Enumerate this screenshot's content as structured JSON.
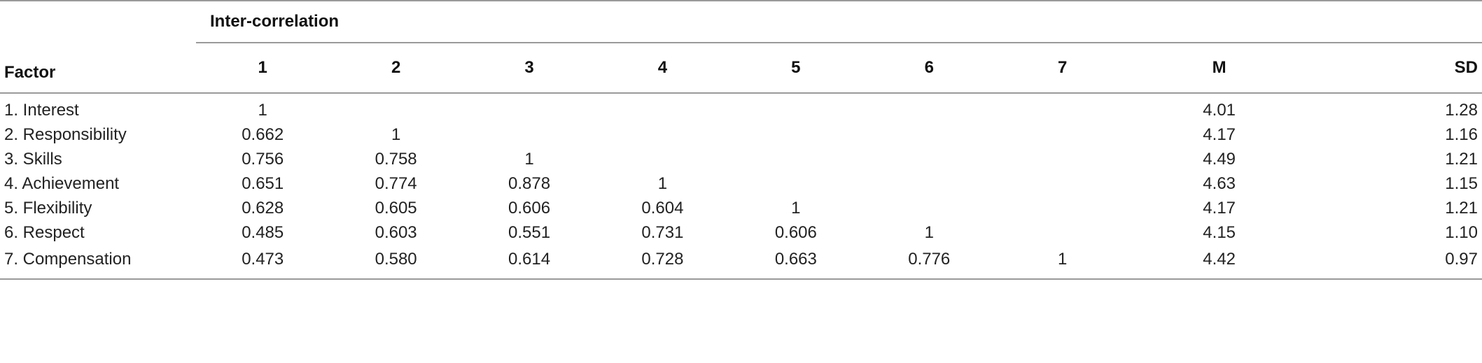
{
  "table": {
    "group_header": "Inter-correlation",
    "columns": [
      "Factor",
      "1",
      "2",
      "3",
      "4",
      "5",
      "6",
      "7",
      "M",
      "SD"
    ],
    "rows": [
      {
        "factor": "1. Interest",
        "r": [
          "1",
          "",
          "",
          "",
          "",
          "",
          ""
        ],
        "m": "4.01",
        "sd": "1.28"
      },
      {
        "factor": "2. Responsibility",
        "r": [
          "0.662",
          "1",
          "",
          "",
          "",
          "",
          ""
        ],
        "m": "4.17",
        "sd": "1.16"
      },
      {
        "factor": "3. Skills",
        "r": [
          "0.756",
          "0.758",
          "1",
          "",
          "",
          "",
          ""
        ],
        "m": "4.49",
        "sd": "1.21"
      },
      {
        "factor": "4. Achievement",
        "r": [
          "0.651",
          "0.774",
          "0.878",
          "1",
          "",
          "",
          ""
        ],
        "m": "4.63",
        "sd": "1.15"
      },
      {
        "factor": "5. Flexibility",
        "r": [
          "0.628",
          "0.605",
          "0.606",
          "0.604",
          "1",
          "",
          ""
        ],
        "m": "4.17",
        "sd": "1.21"
      },
      {
        "factor": "6. Respect",
        "r": [
          "0.485",
          "0.603",
          "0.551",
          "0.731",
          "0.606",
          "1",
          ""
        ],
        "m": "4.15",
        "sd": "1.10"
      },
      {
        "factor": "7. Compensation",
        "r": [
          "0.473",
          "0.580",
          "0.614",
          "0.728",
          "0.663",
          "0.776",
          "1"
        ],
        "m": "4.42",
        "sd": "0.97"
      }
    ]
  }
}
